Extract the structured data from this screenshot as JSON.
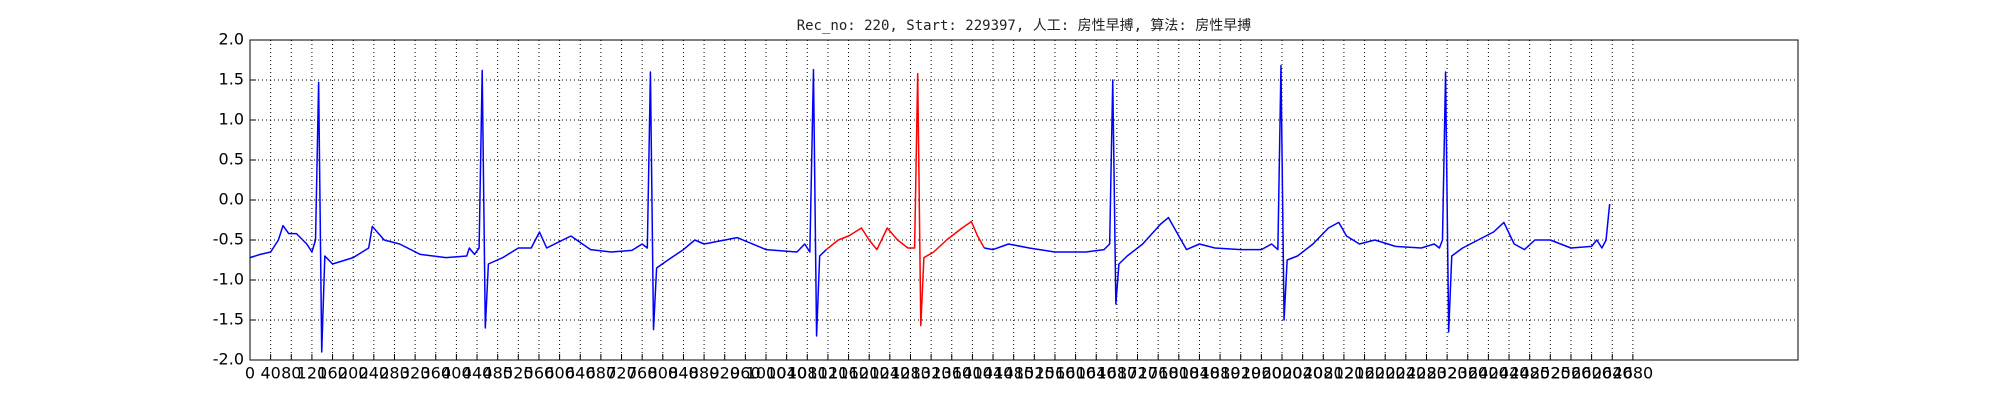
{
  "chart_data": {
    "type": "line",
    "title": "Rec_no: 220, Start: 229397, 人工: 房性早搏, 算法: 房性早搏",
    "xlim": [
      0,
      3000
    ],
    "ylim": [
      -2.0,
      2.0
    ],
    "grid": true,
    "xticks": [
      0,
      40,
      80,
      120,
      160,
      200,
      240,
      280,
      320,
      360,
      400,
      440,
      480,
      520,
      560,
      600,
      640,
      680,
      720,
      760,
      800,
      840,
      880,
      920,
      960,
      1000,
      1040,
      1080,
      1120,
      1160,
      1200,
      1240,
      1280,
      1320,
      1360,
      1400,
      1440,
      1480,
      1520,
      1560,
      1600,
      1640,
      1680,
      1720,
      1760,
      1800,
      1840,
      1880,
      1920,
      1960,
      2000,
      2040,
      2080,
      2120,
      2160,
      2200,
      2240,
      2280,
      2320,
      2360,
      2400,
      2440,
      2480,
      2520,
      2560,
      2600,
      2640,
      2680
    ],
    "yticks": [
      {
        "value": -2.0,
        "label": "-2.0"
      },
      -1.5,
      {
        "value": -1.0,
        "label": "-1.0"
      },
      -0.5,
      {
        "value": 0.0,
        "label": "0.0"
      },
      0.5,
      {
        "value": 1.0,
        "label": "1.0"
      },
      1.5,
      {
        "value": 2.0,
        "label": "2.0"
      }
    ],
    "series": [
      {
        "color": "#0000ff",
        "x": [
          0,
          20,
          40,
          55,
          64,
          75,
          90,
          110,
          120,
          127,
          133,
          139,
          145,
          160,
          200,
          230,
          237,
          260,
          290,
          330,
          380,
          420,
          425,
          435,
          444,
          450,
          456,
          462,
          490,
          520,
          545,
          561,
          575,
          600,
          622,
          660,
          700,
          740,
          760,
          770,
          776,
          782,
          788,
          810,
          840,
          862,
          880,
          944,
          1000,
          1060,
          1075,
          1085,
          1092,
          1098,
          1104,
          1117
        ],
        "values": [
          -0.72,
          -0.68,
          -0.65,
          -0.5,
          -0.32,
          -0.42,
          -0.42,
          -0.55,
          -0.65,
          -0.5,
          1.47,
          -1.9,
          -0.7,
          -0.8,
          -0.72,
          -0.6,
          -0.33,
          -0.5,
          -0.55,
          -0.68,
          -0.72,
          -0.7,
          -0.6,
          -0.68,
          -0.6,
          1.62,
          -1.6,
          -0.8,
          -0.72,
          -0.6,
          -0.6,
          -0.4,
          -0.6,
          -0.52,
          -0.45,
          -0.62,
          -0.65,
          -0.63,
          -0.55,
          -0.6,
          1.6,
          -1.62,
          -0.85,
          -0.75,
          -0.62,
          -0.5,
          -0.55,
          -0.47,
          -0.62,
          -0.65,
          -0.55,
          -0.65,
          1.63,
          -1.7,
          -0.7,
          -0.62
        ]
      },
      {
        "color": "#ff0000",
        "x": [
          1117,
          1140,
          1160,
          1185,
          1200,
          1215,
          1235,
          1255,
          1275,
          1288,
          1294,
          1300,
          1306,
          1325,
          1350,
          1380,
          1398,
          1410,
          1423
        ],
        "values": [
          -0.62,
          -0.5,
          -0.45,
          -0.35,
          -0.5,
          -0.62,
          -0.35,
          -0.5,
          -0.6,
          -0.6,
          1.58,
          -1.57,
          -0.72,
          -0.65,
          -0.5,
          -0.35,
          -0.27,
          -0.45,
          -0.6
        ]
      },
      {
        "color": "#0000ff",
        "x": [
          1423,
          1440,
          1470,
          1510,
          1560,
          1620,
          1655,
          1666,
          1672,
          1678,
          1684,
          1700,
          1730,
          1765,
          1780,
          1800,
          1815,
          1840,
          1870,
          1920,
          1960,
          1980,
          1992,
          1998,
          2004,
          2010,
          2030,
          2060,
          2090,
          2110,
          2125,
          2150,
          2180,
          2220,
          2270,
          2295,
          2305,
          2311,
          2317,
          2323,
          2329,
          2350,
          2380,
          2410,
          2430,
          2450,
          2470,
          2490,
          2520,
          2560,
          2600,
          2610,
          2620,
          2628,
          2635
        ],
        "values": [
          -0.6,
          -0.62,
          -0.55,
          -0.6,
          -0.65,
          -0.65,
          -0.62,
          -0.55,
          1.5,
          -1.3,
          -0.8,
          -0.7,
          -0.55,
          -0.3,
          -0.22,
          -0.45,
          -0.62,
          -0.55,
          -0.6,
          -0.62,
          -0.62,
          -0.55,
          -0.62,
          1.68,
          -1.5,
          -0.75,
          -0.7,
          -0.55,
          -0.35,
          -0.28,
          -0.45,
          -0.55,
          -0.5,
          -0.58,
          -0.6,
          -0.55,
          -0.6,
          -0.5,
          1.6,
          -1.65,
          -0.7,
          -0.6,
          -0.5,
          -0.4,
          -0.28,
          -0.55,
          -0.62,
          -0.5,
          -0.5,
          -0.6,
          -0.58,
          -0.5,
          -0.6,
          -0.5,
          -0.05
        ]
      }
    ]
  }
}
